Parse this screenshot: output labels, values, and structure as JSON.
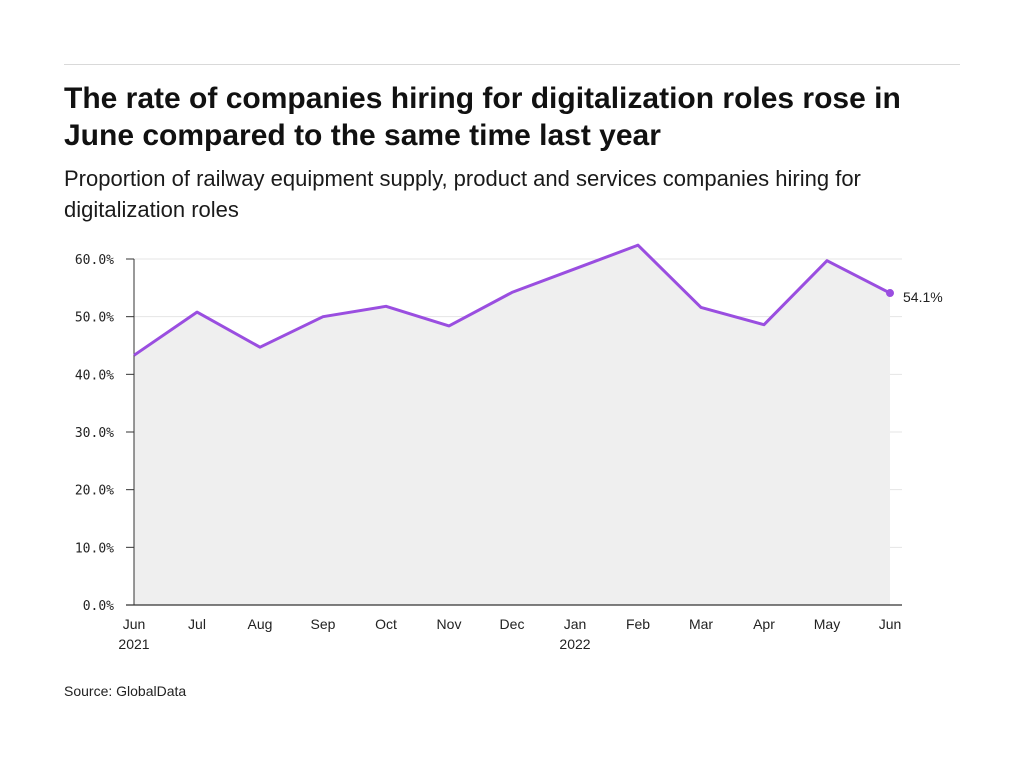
{
  "header": {
    "title": "The rate of companies hiring for digitalization roles rose in June compared to the same time last year",
    "subtitle": "Proportion of railway equipment supply, product and services companies hiring for digitalization roles"
  },
  "footer": {
    "source": "Source: GlobalData"
  },
  "chart_data": {
    "type": "area",
    "title": "The rate of companies hiring for digitalization roles rose in June compared to the same time last year",
    "subtitle": "Proportion of railway equipment supply, product and services companies hiring for digitalization roles",
    "xlabel": "",
    "ylabel": "",
    "categories": [
      "Jun 2021",
      "Jul",
      "Aug",
      "Sep",
      "Oct",
      "Nov",
      "Dec",
      "Jan 2022",
      "Feb",
      "Mar",
      "Apr",
      "May",
      "Jun"
    ],
    "x_tick_labels": [
      [
        "Jun",
        "2021"
      ],
      [
        "Jul"
      ],
      [
        "Aug"
      ],
      [
        "Sep"
      ],
      [
        "Oct"
      ],
      [
        "Nov"
      ],
      [
        "Dec"
      ],
      [
        "Jan",
        "2022"
      ],
      [
        "Feb"
      ],
      [
        "Mar"
      ],
      [
        "Apr"
      ],
      [
        "May"
      ],
      [
        "Jun"
      ]
    ],
    "series": [
      {
        "values": [
          43.3,
          50.8,
          44.7,
          50.0,
          51.8,
          48.4,
          54.2,
          58.3,
          62.4,
          51.6,
          48.6,
          59.7,
          54.1
        ]
      }
    ],
    "ylim": [
      0,
      60
    ],
    "y_ticks": [
      "0.0%",
      "10.0%",
      "20.0%",
      "30.0%",
      "40.0%",
      "50.0%",
      "60.0%"
    ],
    "end_label": "54.1%",
    "grid": true,
    "colors": {
      "line": "#9a4ee0",
      "area": "#efefef",
      "grid": "#e4e4e4",
      "axis": "#333333"
    }
  }
}
